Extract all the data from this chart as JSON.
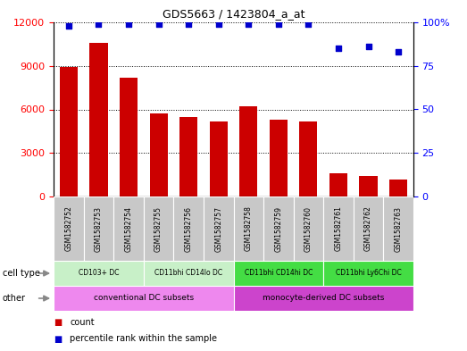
{
  "title": "GDS5663 / 1423804_a_at",
  "samples": [
    "GSM1582752",
    "GSM1582753",
    "GSM1582754",
    "GSM1582755",
    "GSM1582756",
    "GSM1582757",
    "GSM1582758",
    "GSM1582759",
    "GSM1582760",
    "GSM1582761",
    "GSM1582762",
    "GSM1582763"
  ],
  "counts": [
    8900,
    10600,
    8200,
    5700,
    5500,
    5200,
    6200,
    5300,
    5200,
    1600,
    1400,
    1200
  ],
  "percentiles": [
    98,
    99,
    99,
    99,
    99,
    99,
    99,
    99,
    99,
    85,
    86,
    83
  ],
  "cell_types": [
    {
      "label": "CD103+ DC",
      "start": 0,
      "end": 3,
      "color": "#C8F0C8"
    },
    {
      "label": "CD11bhi CD14lo DC",
      "start": 3,
      "end": 6,
      "color": "#C8F0C8"
    },
    {
      "label": "CD11bhi CD14hi DC",
      "start": 6,
      "end": 9,
      "color": "#44DD44"
    },
    {
      "label": "CD11bhi Ly6Chi DC",
      "start": 9,
      "end": 12,
      "color": "#44DD44"
    }
  ],
  "other_groups": [
    {
      "label": "conventional DC subsets",
      "start": 0,
      "end": 6,
      "color": "#EE88EE"
    },
    {
      "label": "monocyte-derived DC subsets",
      "start": 6,
      "end": 12,
      "color": "#CC44CC"
    }
  ],
  "ylim_left": [
    0,
    12000
  ],
  "ylim_right": [
    0,
    100
  ],
  "yticks_left": [
    0,
    3000,
    6000,
    9000,
    12000
  ],
  "yticks_right": [
    0,
    25,
    50,
    75,
    100
  ],
  "bar_color": "#CC0000",
  "dot_color": "#0000CC",
  "tick_bg_color": "#C8C8C8",
  "figsize": [
    5.23,
    3.93
  ],
  "dpi": 100
}
